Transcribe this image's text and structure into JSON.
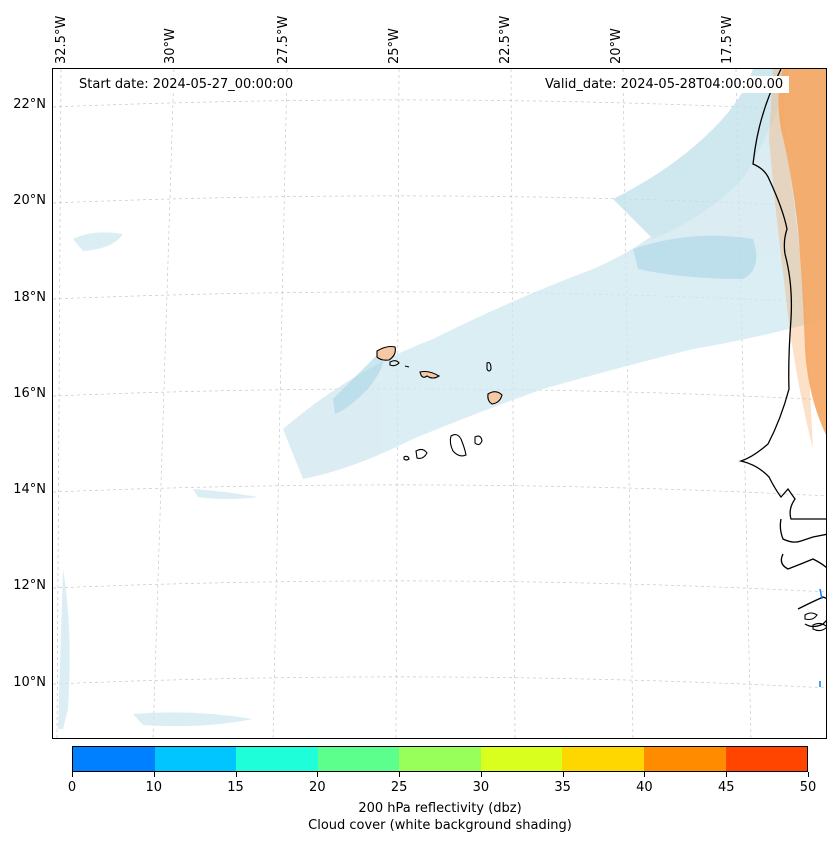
{
  "map": {
    "start_date": "Start date: 2024-05-27_00:00:00",
    "valid_date": "Valid_date: 2024-05-28T04:00:00.00",
    "lon_labels": [
      "32.5°W",
      "30°W",
      "27.5°W",
      "25°W",
      "22.5°W",
      "20°W",
      "17.5°W"
    ],
    "lat_labels": [
      "22°N",
      "20°N",
      "18°N",
      "16°N",
      "14°N",
      "12°N",
      "10°N"
    ],
    "colors": {
      "cloud": "#cfe8f0",
      "cloud_dense": "#a9d6e6",
      "reflectivity_high": "#f5a660",
      "land": "#f6c9a4",
      "coast": "#000000",
      "grid": "#bbbbbb"
    }
  },
  "colorbar": {
    "bounds": [
      "0",
      "10",
      "15",
      "20",
      "25",
      "30",
      "35",
      "40",
      "45",
      "50"
    ],
    "colors": [
      "#0080ff",
      "#00c5ff",
      "#1effd9",
      "#5cff8c",
      "#98ff5a",
      "#d9ff1f",
      "#ffd700",
      "#ff8c00",
      "#ff4500"
    ],
    "label_line1": "200 hPa reflectivity (dbz)",
    "label_line2": "Cloud cover (white background shading)"
  }
}
